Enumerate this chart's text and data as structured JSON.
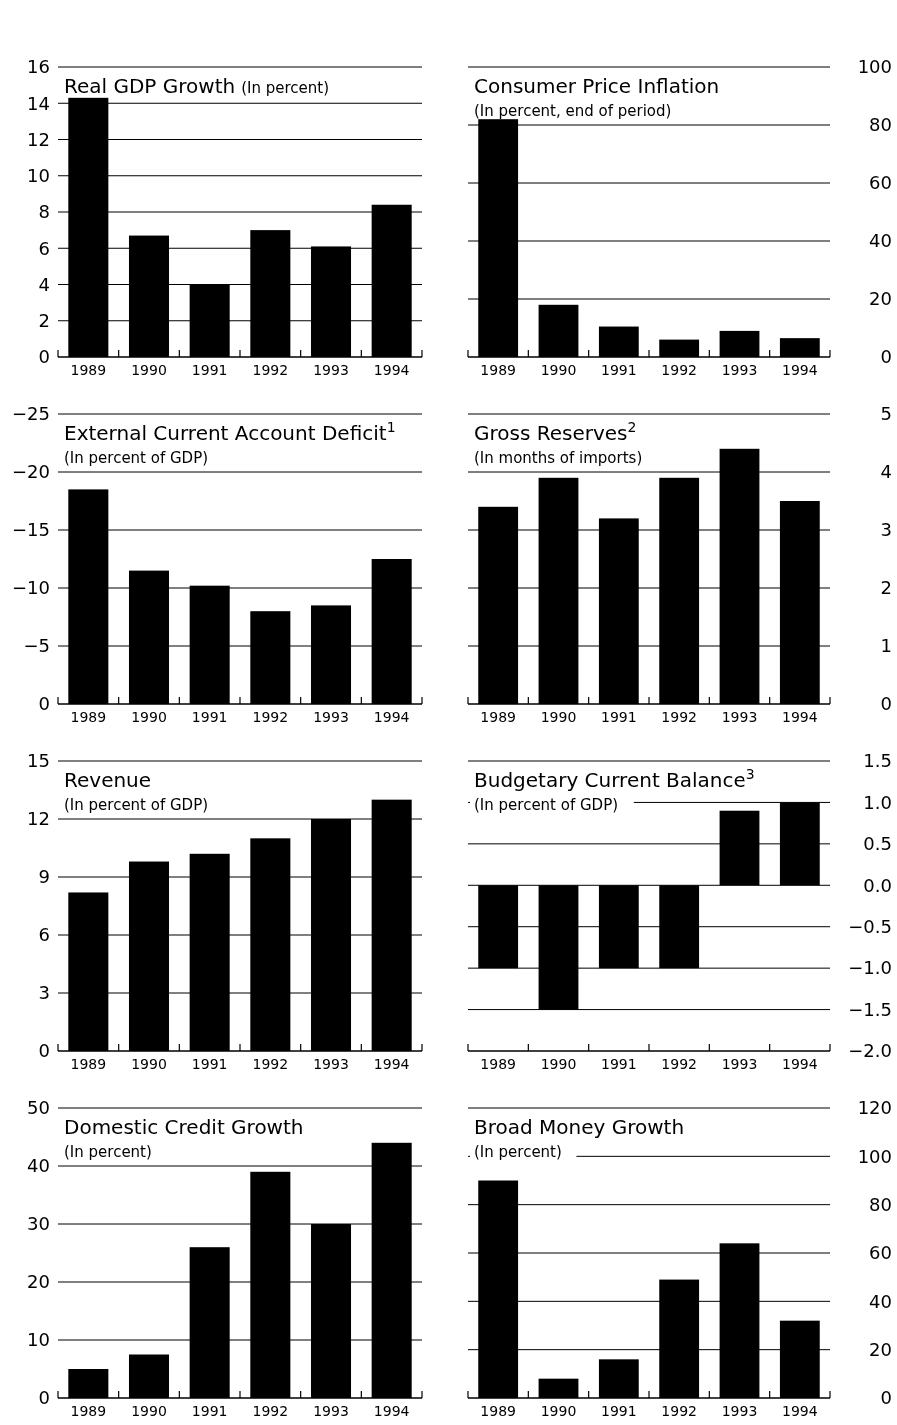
{
  "chart_data": [
    {
      "type": "bar",
      "title": "Real GDP Growth",
      "subtitle": "(In percent)",
      "categories": [
        "1989",
        "1990",
        "1991",
        "1992",
        "1993",
        "1994"
      ],
      "values": [
        14.3,
        6.7,
        4.0,
        7.0,
        6.1,
        8.4
      ],
      "color": "#000000",
      "ylim": [
        0,
        16
      ],
      "yticks": [
        0,
        2,
        4,
        6,
        8,
        10,
        12,
        14,
        16
      ],
      "grid": "y"
    },
    {
      "type": "bar",
      "title": "Consumer Price Inflation",
      "subtitle": "(In percent, end of period)",
      "categories": [
        "1989",
        "1990",
        "1991",
        "1992",
        "1993",
        "1994"
      ],
      "values": [
        82,
        18,
        10.5,
        6,
        9,
        6.5
      ],
      "color": "#000000",
      "ylim": [
        0,
        100
      ],
      "yticks": [
        0,
        20,
        40,
        60,
        80,
        100
      ],
      "grid": "y"
    },
    {
      "type": "bar",
      "title": "External Current Account Deficit$^{1}$",
      "subtitle": "(In percent of GDP)",
      "categories": [
        "1989",
        "1990",
        "1991",
        "1992",
        "1993",
        "1994"
      ],
      "values": [
        -18.5,
        -11.5,
        -10.2,
        -8.0,
        -8.5,
        -12.5
      ],
      "color": "#000000",
      "ylim": [
        0,
        -25
      ],
      "yticks": [
        0,
        {
          "value": -5,
          "label": "−5"
        },
        {
          "value": -10,
          "label": "−10"
        },
        {
          "value": -15,
          "label": "−15"
        },
        {
          "value": -20,
          "label": "−20"
        },
        {
          "value": -25,
          "label": "−25"
        }
      ],
      "grid": "y"
    },
    {
      "type": "bar",
      "title": "Gross Reserves$^{2}$",
      "subtitle": "(In months of imports)",
      "categories": [
        "1989",
        "1990",
        "1991",
        "1992",
        "1993",
        "1994"
      ],
      "values": [
        3.4,
        3.9,
        3.2,
        3.9,
        4.4,
        3.5
      ],
      "color": "#000000",
      "ylim": [
        0,
        5
      ],
      "yticks": [
        0,
        1,
        2,
        3,
        4,
        5
      ],
      "grid": "y"
    },
    {
      "type": "bar",
      "title": "Revenue",
      "subtitle": "(In percent of GDP)",
      "categories": [
        "1989",
        "1990",
        "1991",
        "1992",
        "1993",
        "1994"
      ],
      "values": [
        8.2,
        9.8,
        10.2,
        11.0,
        12.0,
        13.0
      ],
      "color": "#000000",
      "ylim": [
        0,
        15
      ],
      "yticks": [
        0,
        3,
        6,
        9,
        12,
        15
      ],
      "grid": "y"
    },
    {
      "type": "bar",
      "title": "Budgetary Current Balance$^{3}$",
      "subtitle": "(In percent of GDP)",
      "categories": [
        "1989",
        "1990",
        "1991",
        "1992",
        "1993",
        "1994"
      ],
      "values": [
        -1.0,
        -1.5,
        -1.0,
        -1.0,
        0.9,
        1.0
      ],
      "color": "#000000",
      "ylim": [
        -2,
        1.5
      ],
      "yticks": [
        {
          "value": -2,
          "label": "−2.0"
        },
        {
          "value": -1.5,
          "label": "−1.5"
        },
        {
          "value": -1,
          "label": "−1.0"
        },
        {
          "value": -0.5,
          "label": "−0.5"
        },
        {
          "value": 0,
          "label": "0.0"
        },
        0.5,
        {
          "value": 1,
          "label": "1.0"
        },
        1.5
      ],
      "grid": "y"
    },
    {
      "type": "bar",
      "title": "Domestic Credit Growth",
      "subtitle": "(In percent)",
      "categories": [
        "1989",
        "1990",
        "1991",
        "1992",
        "1993",
        "1994"
      ],
      "values": [
        5,
        7.5,
        26,
        39,
        30,
        44
      ],
      "color": "#000000",
      "ylim": [
        0,
        50
      ],
      "yticks": [
        0,
        10,
        20,
        30,
        40,
        50
      ],
      "grid": "y"
    },
    {
      "type": "bar",
      "title": "Broad Money Growth",
      "subtitle": "(In percent)",
      "categories": [
        "1989",
        "1990",
        "1991",
        "1992",
        "1993",
        "1994"
      ],
      "values": [
        90,
        8,
        16,
        49,
        64,
        32
      ],
      "color": "#000000",
      "ylim": [
        0,
        120
      ],
      "yticks": [
        0,
        20,
        40,
        60,
        80,
        100,
        120
      ],
      "grid": "y"
    }
  ]
}
